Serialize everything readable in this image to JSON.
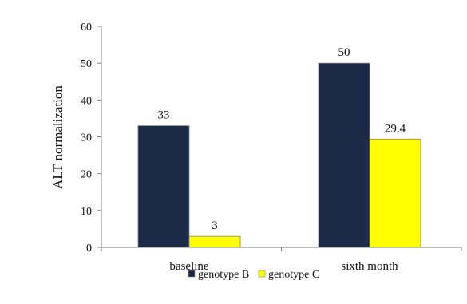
{
  "chart_data": {
    "type": "bar",
    "title": "",
    "xlabel": "",
    "ylabel": "ALT normalization",
    "ylim": [
      0,
      60
    ],
    "yticks": [
      0,
      10,
      20,
      30,
      40,
      50,
      60
    ],
    "categories": [
      "baseline",
      "sixth month"
    ],
    "series": [
      {
        "name": "genotype B",
        "color": "#1c2a48",
        "values": [
          33,
          50
        ]
      },
      {
        "name": "genotype C",
        "color": "#ffff00",
        "values": [
          3,
          29.4
        ]
      }
    ],
    "data_labels": true,
    "grid": false,
    "legend_position": "bottom"
  }
}
